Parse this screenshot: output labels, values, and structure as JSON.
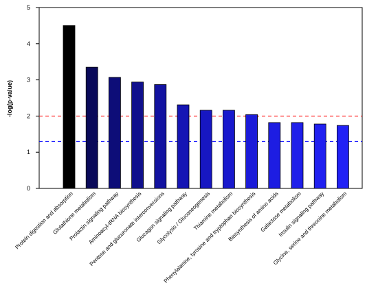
{
  "chart_data": {
    "type": "bar",
    "ylabel": "-log(p-value)",
    "xlabel": "",
    "ylim": [
      0,
      5
    ],
    "yticks": [
      "0",
      "1",
      "2",
      "3",
      "4",
      "5"
    ],
    "categories": [
      "Protein digestion and absorption",
      "Glutathione metabolism",
      "Prolactin signaling pathway",
      "Aminoacyl-tRNA biosynthesis",
      "Pentose and glucuronate interconversions",
      "Glucagon signaling pathway",
      "Glycolysis / Gluconeogenesis",
      "Thiamine metabolism",
      "Phenylalanine, tyrosine and tryptophan biosynthesis",
      "Biosynthesis of amino acids",
      "Galactose metabolism",
      "Insulin signaling pathway",
      "Glycine, serine and threonine metabolism"
    ],
    "values": [
      4.5,
      3.35,
      3.07,
      2.94,
      2.87,
      2.31,
      2.16,
      2.16,
      2.04,
      1.82,
      1.82,
      1.78,
      1.74
    ],
    "bar_colors": [
      "#000000",
      "#0a0a5a",
      "#0d0d78",
      "#10108c",
      "#1212a0",
      "#1515b4",
      "#1717c2",
      "#1919cd",
      "#1b1bd8",
      "#1d1de2",
      "#1f1fea",
      "#2020f0",
      "#2121f6"
    ],
    "reference_lines": [
      {
        "value": 2.0,
        "color": "#ff0000",
        "style": "dashed"
      },
      {
        "value": 1.3,
        "color": "#0000ff",
        "style": "dashed"
      }
    ],
    "grid": false,
    "legend": "none"
  }
}
